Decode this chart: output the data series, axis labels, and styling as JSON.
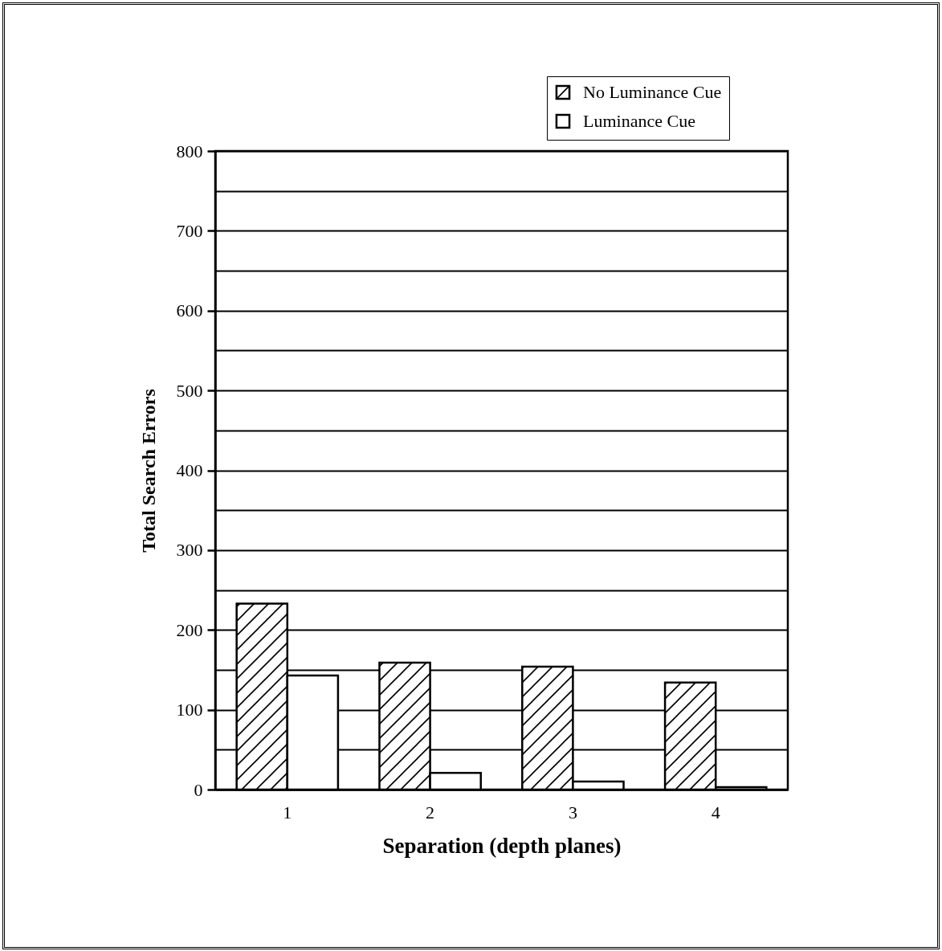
{
  "chart_data": {
    "type": "bar",
    "xlabel": "Separation (depth planes)",
    "ylabel": "Total Search Errors",
    "categories": [
      "1",
      "2",
      "3",
      "4"
    ],
    "series": [
      {
        "name": "No Luminance Cue",
        "color": "#000000",
        "values": [
          233,
          159,
          154,
          134
        ]
      },
      {
        "name": "Luminance Cue",
        "color": "#ffffff",
        "values": [
          143,
          21,
          10,
          3
        ]
      }
    ],
    "ylim": [
      0,
      800
    ],
    "yticks": [
      0,
      {
        "value": 50,
        "label": null
      },
      100,
      {
        "value": 150,
        "label": null
      },
      200,
      {
        "value": 250,
        "label": null
      },
      300,
      {
        "value": 350,
        "label": null
      },
      400,
      {
        "value": 450,
        "label": null
      },
      500,
      {
        "value": 550,
        "label": null
      },
      600,
      {
        "value": 650,
        "label": null
      },
      700,
      {
        "value": 750,
        "label": null
      },
      800
    ],
    "grid": "y",
    "legend": "top right"
  }
}
